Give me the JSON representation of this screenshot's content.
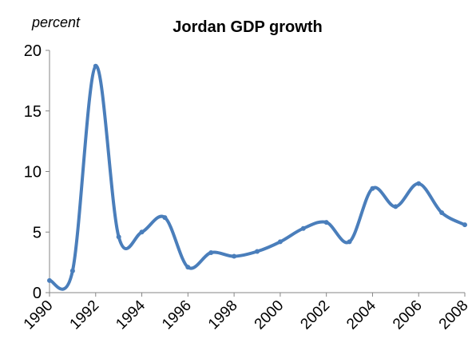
{
  "chart_data": {
    "type": "line",
    "title": "Jordan GDP growth",
    "unit_label": "percent",
    "xlabel": "",
    "ylabel": "",
    "ylim": [
      0,
      20
    ],
    "yticks": [
      "0",
      "5",
      "10",
      "15",
      "20"
    ],
    "xlim": [
      1990,
      2008
    ],
    "xticks": [
      "1990",
      "1992",
      "1994",
      "1996",
      "1998",
      "2000",
      "2002",
      "2004",
      "2006",
      "2008"
    ],
    "grid": false,
    "legend": "none",
    "smoothed": true,
    "series_color": "#4a7ebb",
    "series": [
      {
        "x": [
          1990,
          1991,
          1992,
          1993,
          1994,
          1995,
          1996,
          1997,
          1998,
          1999,
          2000,
          2001,
          2002,
          2003,
          2004,
          2005,
          2006,
          2007,
          2008
        ],
        "values": [
          1.0,
          1.8,
          18.7,
          4.6,
          5.0,
          6.2,
          2.1,
          3.3,
          3.0,
          3.4,
          4.2,
          5.3,
          5.8,
          4.2,
          8.6,
          7.1,
          9.0,
          6.6,
          5.6
        ]
      }
    ]
  }
}
